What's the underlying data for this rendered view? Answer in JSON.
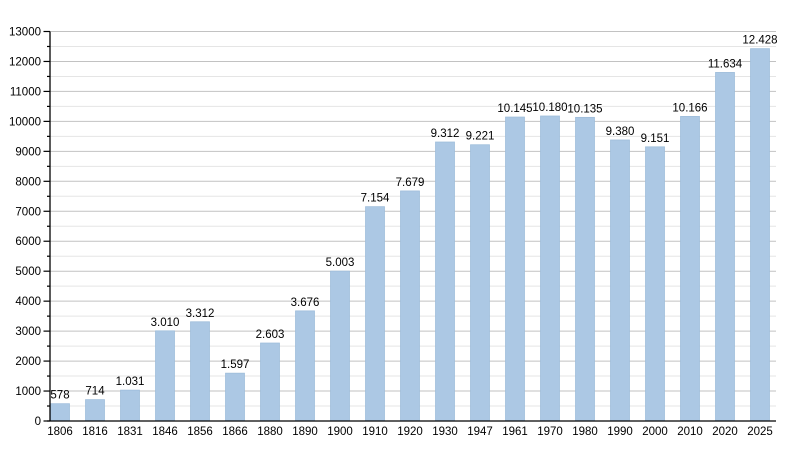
{
  "chart_data": {
    "type": "bar",
    "title": "",
    "xlabel": "",
    "ylabel": "",
    "categories": [
      "1806",
      "1816",
      "1831",
      "1846",
      "1856",
      "1866",
      "1880",
      "1890",
      "1900",
      "1910",
      "1920",
      "1930",
      "1947",
      "1961",
      "1970",
      "1980",
      "1990",
      "2000",
      "2010",
      "2020",
      "2025"
    ],
    "values": [
      578,
      714,
      1031,
      3010,
      3312,
      1597,
      2603,
      3676,
      5003,
      7154,
      7679,
      9312,
      9221,
      10145,
      10180,
      10135,
      9380,
      9151,
      10166,
      11634,
      12428
    ],
    "value_labels": [
      "578",
      "714",
      "1.031",
      "3.010",
      "3.312",
      "1.597",
      "2.603",
      "3.676",
      "5.003",
      "7.154",
      "7.679",
      "9.312",
      "9.221",
      "10.145",
      "10.180",
      "10.135",
      "9.380",
      "9.151",
      "10.166",
      "11.634",
      "12.428"
    ],
    "ylim": [
      0,
      13000
    ],
    "ytick_step": 1000,
    "ytick_minor_step": 500,
    "ytick_labels": [
      "0",
      "1000",
      "2000",
      "3000",
      "4000",
      "5000",
      "6000",
      "7000",
      "8000",
      "9000",
      "10000",
      "11000",
      "12000",
      "13000"
    ],
    "grid": "on",
    "legend_position": "none",
    "colors": {
      "bar_fill": "#acc8e4",
      "bar_edge": "#9dbcda",
      "grid_major": "#c2c2c2",
      "grid_minor": "#e5e5e5",
      "axis": "#000000",
      "text": "#000000",
      "background": "#ffffff"
    }
  }
}
